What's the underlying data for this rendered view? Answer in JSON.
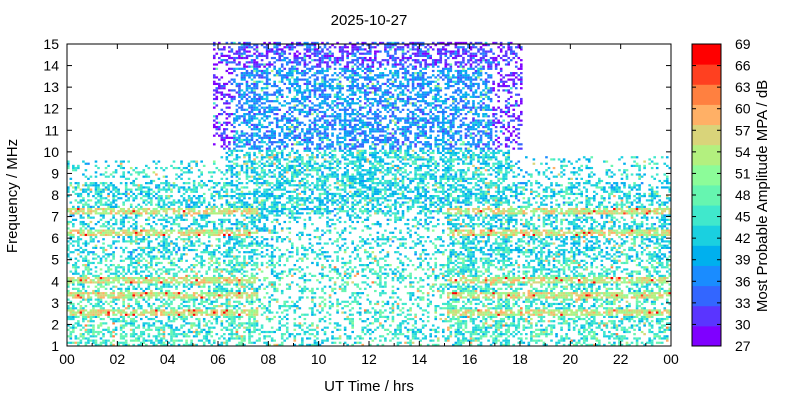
{
  "chart_data": {
    "type": "heatmap",
    "title": "2025-10-27",
    "xlabel": "UT Time / hrs",
    "ylabel": "Frequency / MHz",
    "colorbar_label": "Most Probable Amplitude MPA / dB",
    "xlim": [
      0,
      24
    ],
    "ylim": [
      1,
      15
    ],
    "x_tick_labels": [
      "00",
      "02",
      "04",
      "06",
      "08",
      "10",
      "12",
      "14",
      "16",
      "18",
      "20",
      "22",
      "00"
    ],
    "y_tick_labels": [
      "1",
      "2",
      "3",
      "4",
      "5",
      "6",
      "7",
      "8",
      "9",
      "10",
      "11",
      "12",
      "13",
      "14",
      "15"
    ],
    "colorbar_ticks": [
      "27",
      "30",
      "33",
      "36",
      "39",
      "42",
      "45",
      "48",
      "51",
      "54",
      "57",
      "60",
      "63",
      "66",
      "69"
    ],
    "colorbar_range": [
      27,
      69
    ],
    "colormap": [
      "#7f00ff",
      "#5a35ff",
      "#3366ff",
      "#1a8cff",
      "#00b0ee",
      "#1ad0e0",
      "#40e8cc",
      "#66f5b0",
      "#8cfc99",
      "#b3f07f",
      "#d9d47a",
      "#ffb066",
      "#ff8040",
      "#ff4020",
      "#ff0000"
    ],
    "grid": false,
    "description_of_data": {
      "low_band_MHz": [
        1,
        10
      ],
      "high_band_MHz": [
        10,
        15
      ],
      "high_band_hours": [
        5.7,
        18
      ],
      "strong_bands_MHz": [
        2.5,
        3.3,
        4.0,
        6.2,
        7.2
      ]
    }
  }
}
